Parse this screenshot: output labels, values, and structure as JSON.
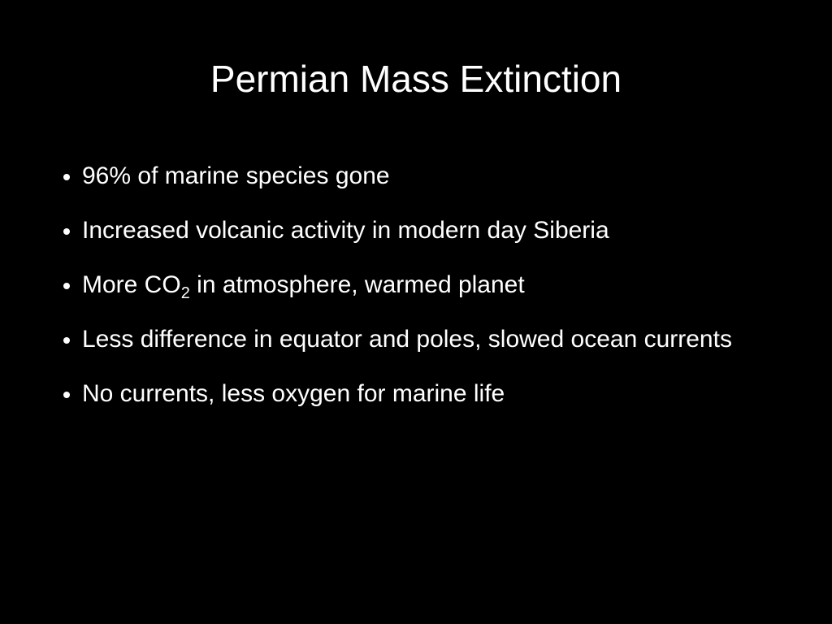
{
  "slide": {
    "title": "Permian Mass Extinction",
    "bullets": [
      [
        {
          "text": "96% of marine species gone"
        }
      ],
      [
        {
          "text": "Increased volcanic activity in modern day Siberia"
        }
      ],
      [
        {
          "text": "More CO"
        },
        {
          "text": "2",
          "sub": true
        },
        {
          "text": " in atmosphere, warmed planet"
        }
      ],
      [
        {
          "text": "Less difference in equator and poles, slowed ocean currents"
        }
      ],
      [
        {
          "text": "No currents, less oxygen for marine life"
        }
      ]
    ]
  }
}
